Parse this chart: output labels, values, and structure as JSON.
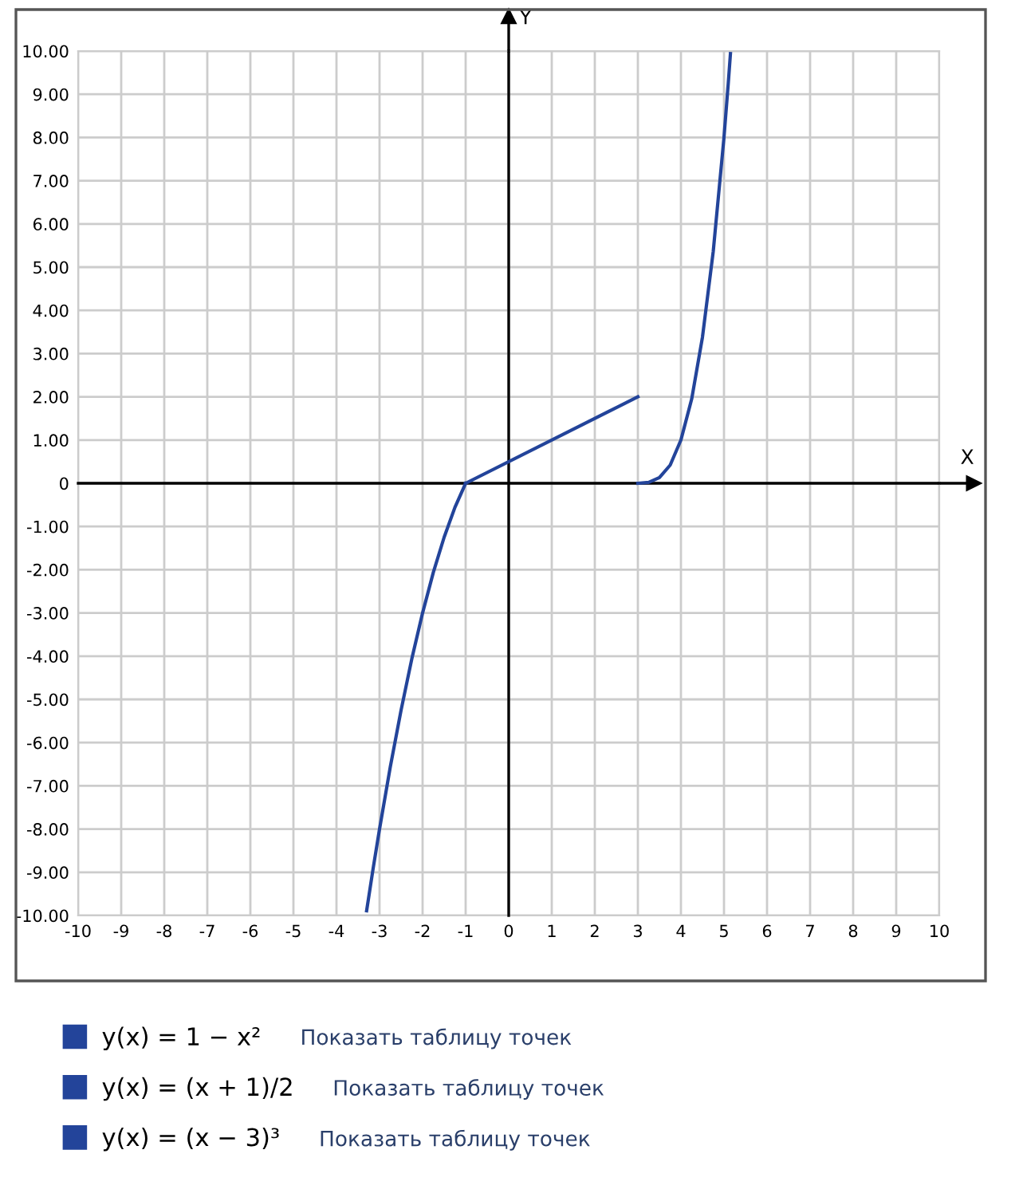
{
  "chart_data": {
    "type": "line",
    "xlabel": "X",
    "ylabel": "Y",
    "xlim": [
      -10,
      10
    ],
    "ylim": [
      -10,
      10
    ],
    "xticks": [
      -10,
      -9,
      -8,
      -7,
      -6,
      -5,
      -4,
      -3,
      -2,
      -1,
      0,
      1,
      2,
      3,
      4,
      5,
      6,
      7,
      8,
      9,
      10
    ],
    "yticks": [
      {
        "value": -10,
        "label": "-10.00"
      },
      {
        "value": -9,
        "label": "-9.00"
      },
      {
        "value": -8,
        "label": "-8.00"
      },
      {
        "value": -7,
        "label": "-7.00"
      },
      {
        "value": -6,
        "label": "-6.00"
      },
      {
        "value": -5,
        "label": "-5.00"
      },
      {
        "value": -4,
        "label": "-4.00"
      },
      {
        "value": -3,
        "label": "-3.00"
      },
      {
        "value": -2,
        "label": "-2.00"
      },
      {
        "value": -1,
        "label": "-1.00"
      },
      0,
      {
        "value": 1,
        "label": "1.00"
      },
      {
        "value": 2,
        "label": "2.00"
      },
      {
        "value": 3,
        "label": "3.00"
      },
      {
        "value": 4,
        "label": "4.00"
      },
      {
        "value": 5,
        "label": "5.00"
      },
      {
        "value": 6,
        "label": "6.00"
      },
      {
        "value": 7,
        "label": "7.00"
      },
      {
        "value": 8,
        "label": "8.00"
      },
      {
        "value": 9,
        "label": "9.00"
      },
      {
        "value": 10,
        "label": "10.00"
      }
    ],
    "series": [
      {
        "name": "y(x) = 1 − x²",
        "color": "#23449a",
        "x": [
          -3.3,
          -3.15,
          -3,
          -2.75,
          -2.5,
          -2.25,
          -2,
          -1.75,
          -1.5,
          -1.25,
          -1
        ],
        "values": [
          -9.89,
          -8.92,
          -8,
          -6.56,
          -5.25,
          -4.06,
          -3,
          -2.06,
          -1.25,
          -0.56,
          0
        ]
      },
      {
        "name": "y(x) = (x + 1)/2",
        "color": "#23449a",
        "x": [
          -1,
          3
        ],
        "values": [
          0,
          2
        ]
      },
      {
        "name": "y(x) = (x − 3)³",
        "color": "#23449a",
        "x": [
          3,
          3.25,
          3.5,
          3.75,
          4,
          4.25,
          4.5,
          4.75,
          5,
          5.1,
          5.15
        ],
        "values": [
          0,
          0.02,
          0.13,
          0.42,
          1,
          1.95,
          3.38,
          5.36,
          8,
          9.26,
          9.94
        ]
      }
    ],
    "annotations": [
      "Показать таблицу точек",
      "Показать таблицу точек",
      "Показать таблицу точек"
    ],
    "grid": true,
    "legend": "bottom left",
    "marker": "none",
    "line_style": "solid"
  }
}
